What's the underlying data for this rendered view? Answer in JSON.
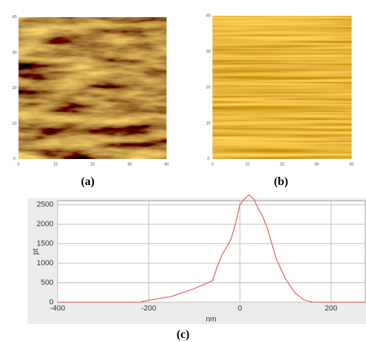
{
  "panels": [
    {
      "label": "(a)",
      "xticks": [
        "0",
        "10",
        "20",
        "30",
        "40"
      ],
      "yticks": [
        "0",
        "10",
        "20",
        "30",
        "40"
      ]
    },
    {
      "label": "(b)",
      "xticks": [
        "0",
        "10",
        "20",
        "30",
        "40"
      ],
      "yticks": [
        "0",
        "10",
        "20",
        "30",
        "40"
      ]
    }
  ],
  "chart_data": {
    "type": "line",
    "label": "(c)",
    "xlabel": "nm",
    "ylabel": "pt",
    "x": [
      -400,
      -220,
      -200,
      -150,
      -100,
      -80,
      -60,
      -50,
      -40,
      -30,
      -20,
      -10,
      0,
      10,
      20,
      30,
      40,
      50,
      60,
      70,
      80,
      100,
      120,
      140,
      160,
      275
    ],
    "values": [
      0,
      0,
      50,
      150,
      350,
      450,
      550,
      900,
      1200,
      1400,
      1600,
      2000,
      2500,
      2650,
      2750,
      2650,
      2400,
      2200,
      1900,
      1500,
      1100,
      600,
      250,
      60,
      0,
      0
    ],
    "color": "#e06060",
    "xlim": [
      -400,
      275
    ],
    "ylim": [
      0,
      2600
    ],
    "xticks": [
      -400,
      -200,
      0,
      200
    ],
    "yticks": [
      0,
      500,
      1000,
      1500,
      2000,
      2500
    ],
    "grid": true
  }
}
